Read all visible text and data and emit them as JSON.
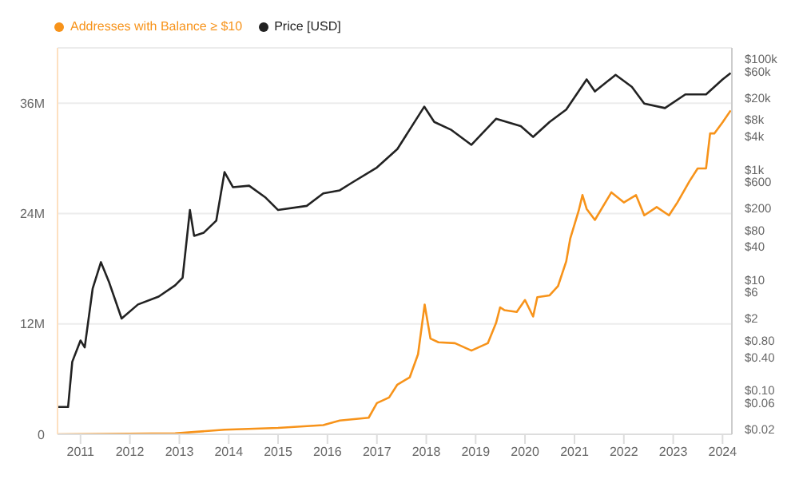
{
  "chart_data": {
    "type": "line",
    "legend": "top left",
    "grid": "y",
    "marker": "none",
    "line_style": "solid",
    "xlim": [
      "2010-07-15",
      "2024-03-10"
    ],
    "xticks": [
      {
        "value": "2011",
        "label": "2011"
      },
      {
        "value": "2012",
        "label": "2012"
      },
      {
        "value": "2013",
        "label": "2013"
      },
      {
        "value": "2014",
        "label": "2014"
      },
      {
        "value": "2015",
        "label": "2015"
      },
      {
        "value": "2016",
        "label": "2016"
      },
      {
        "value": "2017",
        "label": "2017"
      },
      {
        "value": "2018",
        "label": "2018"
      },
      {
        "value": "2019",
        "label": "2019"
      },
      {
        "value": "2020",
        "label": "2020"
      },
      {
        "value": "2021",
        "label": "2021"
      },
      {
        "value": "2022",
        "label": "2022"
      },
      {
        "value": "2023",
        "label": "2023"
      },
      {
        "value": "2024",
        "label": "2024"
      }
    ],
    "ylim": [
      0,
      42000000
    ],
    "yticks": [
      {
        "value": 0,
        "label": "0"
      },
      {
        "value": 12000000,
        "label": "12M"
      },
      {
        "value": 24000000,
        "label": "24M"
      },
      {
        "value": 36000000,
        "label": "36M"
      }
    ],
    "log": "y2",
    "y2lim": [
      0.016,
      160000
    ],
    "y2ticks": [
      {
        "value": 0.02,
        "label": "$0.02"
      },
      {
        "value": 0.06,
        "label": "$0.06"
      },
      {
        "value": 0.1,
        "label": "$0.10"
      },
      {
        "value": 0.4,
        "label": "$0.40"
      },
      {
        "value": 0.8,
        "label": "$0.80"
      },
      {
        "value": 2,
        "label": "$2"
      },
      {
        "value": 6,
        "label": "$6"
      },
      {
        "value": 10,
        "label": "$10"
      },
      {
        "value": 40,
        "label": "$40"
      },
      {
        "value": 80,
        "label": "$80"
      },
      {
        "value": 200,
        "label": "$200"
      },
      {
        "value": 600,
        "label": "$600"
      },
      {
        "value": 1000,
        "label": "$1k"
      },
      {
        "value": 4000,
        "label": "$4k"
      },
      {
        "value": 8000,
        "label": "$8k"
      },
      {
        "value": 20000,
        "label": "$20k"
      },
      {
        "value": 60000,
        "label": "$60k"
      },
      {
        "value": 100000,
        "label": "$100k"
      }
    ],
    "series": [
      {
        "name": "Addresses with Balance ≥ $10",
        "color": "#f7931a",
        "x": [
          "2010-07-20",
          "2012-12",
          "2013-12",
          "2015-01",
          "2015-12",
          "2016-04",
          "2016-11",
          "2017-01",
          "2017-04",
          "2017-06",
          "2017-09",
          "2017-11",
          "2017-12-01",
          "2017-12-20",
          "2018-02",
          "2018-04",
          "2018-08",
          "2018-12",
          "2019-04",
          "2019-06",
          "2019-07",
          "2019-08",
          "2019-11",
          "2020-01",
          "2020-03",
          "2020-04",
          "2020-07",
          "2020-09",
          "2020-11",
          "2020-12",
          "2021-02",
          "2021-03",
          "2021-04",
          "2021-06",
          "2021-10",
          "2022-01",
          "2022-04",
          "2022-06",
          "2022-09",
          "2022-12",
          "2023-02",
          "2023-05",
          "2023-07",
          "2023-09",
          "2023-10",
          "2023-11",
          "2024-01",
          "2024-03"
        ],
        "values": [
          0,
          100000,
          500000,
          700000,
          1000000,
          1500000,
          1800000,
          3400000,
          4000000,
          5400000,
          6200000,
          8700000,
          12000000,
          14100000,
          10400000,
          10000000,
          9900000,
          9100000,
          9900000,
          12100000,
          13800000,
          13500000,
          13300000,
          14600000,
          12800000,
          14900000,
          15100000,
          16100000,
          18800000,
          21300000,
          24300000,
          26000000,
          24500000,
          23300000,
          26300000,
          25200000,
          26000000,
          23800000,
          24700000,
          23800000,
          25200000,
          27500000,
          28900000,
          28900000,
          32700000,
          32700000,
          33900000,
          35200000
        ]
      },
      {
        "name": "Price [USD]",
        "color": "#222222",
        "axis": "y2",
        "x": [
          "2010-07-20",
          "2010-10",
          "2010-11",
          "2011-01",
          "2011-02",
          "2011-04",
          "2011-06",
          "2011-08",
          "2011-11",
          "2012-03",
          "2012-08",
          "2012-12",
          "2013-01-25",
          "2013-03-20",
          "2013-04-20",
          "2013-07",
          "2013-10",
          "2013-12",
          "2014-02",
          "2014-06",
          "2014-10",
          "2015-01",
          "2015-08",
          "2015-12",
          "2016-04",
          "2016-07",
          "2017-01",
          "2017-06",
          "2017-12-17",
          "2018-03",
          "2018-07",
          "2018-12",
          "2019-06",
          "2019-12",
          "2020-03",
          "2020-07",
          "2020-11",
          "2021-04",
          "2021-06",
          "2021-11",
          "2022-03",
          "2022-06",
          "2022-11",
          "2023-04",
          "2023-09",
          "2024-01",
          "2024-03"
        ],
        "values": [
          0.05,
          0.05,
          0.33,
          0.8,
          0.6,
          7,
          21,
          9,
          2,
          3.6,
          5,
          8,
          11,
          185,
          63,
          72,
          119,
          900,
          480,
          510,
          310,
          185,
          220,
          370,
          420,
          580,
          1090,
          2350,
          13800,
          7300,
          5300,
          2800,
          8300,
          6100,
          3900,
          7300,
          12200,
          43000,
          26000,
          52000,
          31600,
          15700,
          13000,
          23000,
          23000,
          43000,
          56000
        ]
      }
    ]
  }
}
